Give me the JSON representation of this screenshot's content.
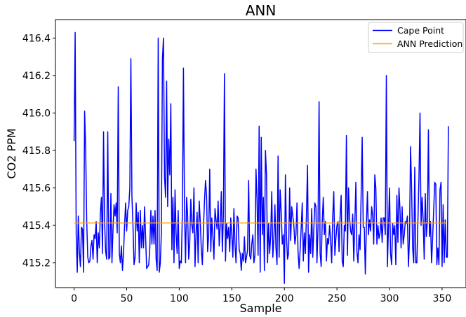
{
  "chart_data": {
    "type": "line",
    "title": "ANN",
    "xlabel": "Sample",
    "ylabel": "CO2 PPM",
    "xlim": [
      -17.75,
      372.75
    ],
    "ylim": [
      415.068,
      416.4985
    ],
    "xticks": [
      0,
      50,
      100,
      150,
      200,
      250,
      300,
      350
    ],
    "yticks": [
      415.2,
      415.4,
      415.6,
      415.8,
      416.0,
      416.2,
      416.4
    ],
    "ytick_labels": [
      "415.2",
      "415.4",
      "415.6",
      "415.8",
      "416.0",
      "416.2",
      "416.4"
    ],
    "grid": false,
    "legend_position": "top-right",
    "series": [
      {
        "name": "Cape Point",
        "color": "#0000ff",
        "x_start": 0,
        "values": [
          415.85,
          416.43,
          415.35,
          415.15,
          415.45,
          415.26,
          415.18,
          415.39,
          415.38,
          415.15,
          416.01,
          415.81,
          415.42,
          415.23,
          415.2,
          415.21,
          415.29,
          415.32,
          415.22,
          415.35,
          415.33,
          415.42,
          415.2,
          415.36,
          415.28,
          415.47,
          415.55,
          415.25,
          415.9,
          415.42,
          415.26,
          415.22,
          415.9,
          415.22,
          415.23,
          415.57,
          415.2,
          415.38,
          415.51,
          415.45,
          415.52,
          415.36,
          416.14,
          415.25,
          415.2,
          415.29,
          415.16,
          415.25,
          415.4,
          415.52,
          415.37,
          415.48,
          415.5,
          415.6,
          416.29,
          415.55,
          415.4,
          415.19,
          415.23,
          415.52,
          415.37,
          415.47,
          415.2,
          415.48,
          415.28,
          415.4,
          415.28,
          415.5,
          415.34,
          415.17,
          415.18,
          415.19,
          415.28,
          415.48,
          415.3,
          415.45,
          415.3,
          415.48,
          415.22,
          415.16,
          416.4,
          415.15,
          415.2,
          415.36,
          416.29,
          416.4,
          415.66,
          415.55,
          416.17,
          415.5,
          415.86,
          415.67,
          416.05,
          415.27,
          415.55,
          415.2,
          415.59,
          415.36,
          415.25,
          415.48,
          415.17,
          415.21,
          415.2,
          415.47,
          416.24,
          415.48,
          415.2,
          415.55,
          415.45,
          415.22,
          415.31,
          415.54,
          415.4,
          415.36,
          415.6,
          415.18,
          415.36,
          415.47,
          415.2,
          415.53,
          415.42,
          415.27,
          415.19,
          415.38,
          415.53,
          415.64,
          415.56,
          415.26,
          415.35,
          415.7,
          415.26,
          415.44,
          415.34,
          415.22,
          415.49,
          415.43,
          415.38,
          415.53,
          415.29,
          415.4,
          415.58,
          415.26,
          415.46,
          416.21,
          415.21,
          415.41,
          415.33,
          415.39,
          415.26,
          415.44,
          415.35,
          415.23,
          415.49,
          415.3,
          415.2,
          415.45,
          415.44,
          415.27,
          415.25,
          415.16,
          415.25,
          415.21,
          415.34,
          415.2,
          415.23,
          415.27,
          415.64,
          415.24,
          415.22,
          415.3,
          415.35,
          415.2,
          415.24,
          415.7,
          415.53,
          415.24,
          415.93,
          415.15,
          415.87,
          415.35,
          415.55,
          415.16,
          415.8,
          415.67,
          415.2,
          415.41,
          415.25,
          415.35,
          415.58,
          415.23,
          415.33,
          415.51,
          415.28,
          415.19,
          415.77,
          415.23,
          415.59,
          415.47,
          415.3,
          415.35,
          415.09,
          415.67,
          415.34,
          415.22,
          415.25,
          415.6,
          415.32,
          415.5,
          415.45,
          415.4,
          415.3,
          415.35,
          415.52,
          415.26,
          415.17,
          415.27,
          415.39,
          415.52,
          415.21,
          415.36,
          415.25,
          415.46,
          415.72,
          415.15,
          415.35,
          415.25,
          415.49,
          415.23,
          415.38,
          415.52,
          415.5,
          415.2,
          415.39,
          416.06,
          415.25,
          415.18,
          415.42,
          415.55,
          415.35,
          415.42,
          415.21,
          415.33,
          415.3,
          415.4,
          415.32,
          415.2,
          415.45,
          415.58,
          415.24,
          415.33,
          415.4,
          415.42,
          415.26,
          415.45,
          415.56,
          415.21,
          415.18,
          415.4,
          415.37,
          415.88,
          415.24,
          415.6,
          415.44,
          415.37,
          415.35,
          415.46,
          415.21,
          415.41,
          415.63,
          415.26,
          415.2,
          415.35,
          415.27,
          415.56,
          415.87,
          415.39,
          415.39,
          415.14,
          415.4,
          415.58,
          415.35,
          415.43,
          415.37,
          415.5,
          415.45,
          415.3,
          415.67,
          415.6,
          415.3,
          415.4,
          415.33,
          415.36,
          415.44,
          415.31,
          415.44,
          415.44,
          415.35,
          416.2,
          415.18,
          415.39,
          415.6,
          415.25,
          415.19,
          415.41,
          415.35,
          415.4,
          415.19,
          415.56,
          415.31,
          415.6,
          415.48,
          415.28,
          415.5,
          415.3,
          415.35,
          415.42,
          415.41,
          415.45,
          415.18,
          415.33,
          415.82,
          415.6,
          415.28,
          415.2,
          415.71,
          415.2,
          415.2,
          415.42,
          415.65,
          416.0,
          415.4,
          415.55,
          415.43,
          415.22,
          415.57,
          415.34,
          415.42,
          415.91,
          415.34,
          415.42,
          415.2,
          415.33,
          415.48,
          415.63,
          415.62,
          415.19,
          415.28,
          415.19,
          415.59,
          415.63,
          415.18,
          415.51,
          415.2,
          415.43,
          415.23,
          415.23,
          415.93
        ]
      },
      {
        "name": "ANN Prediction",
        "color": "#ffa500",
        "x": [
          0,
          354
        ],
        "values": [
          415.413,
          415.413
        ]
      }
    ]
  }
}
